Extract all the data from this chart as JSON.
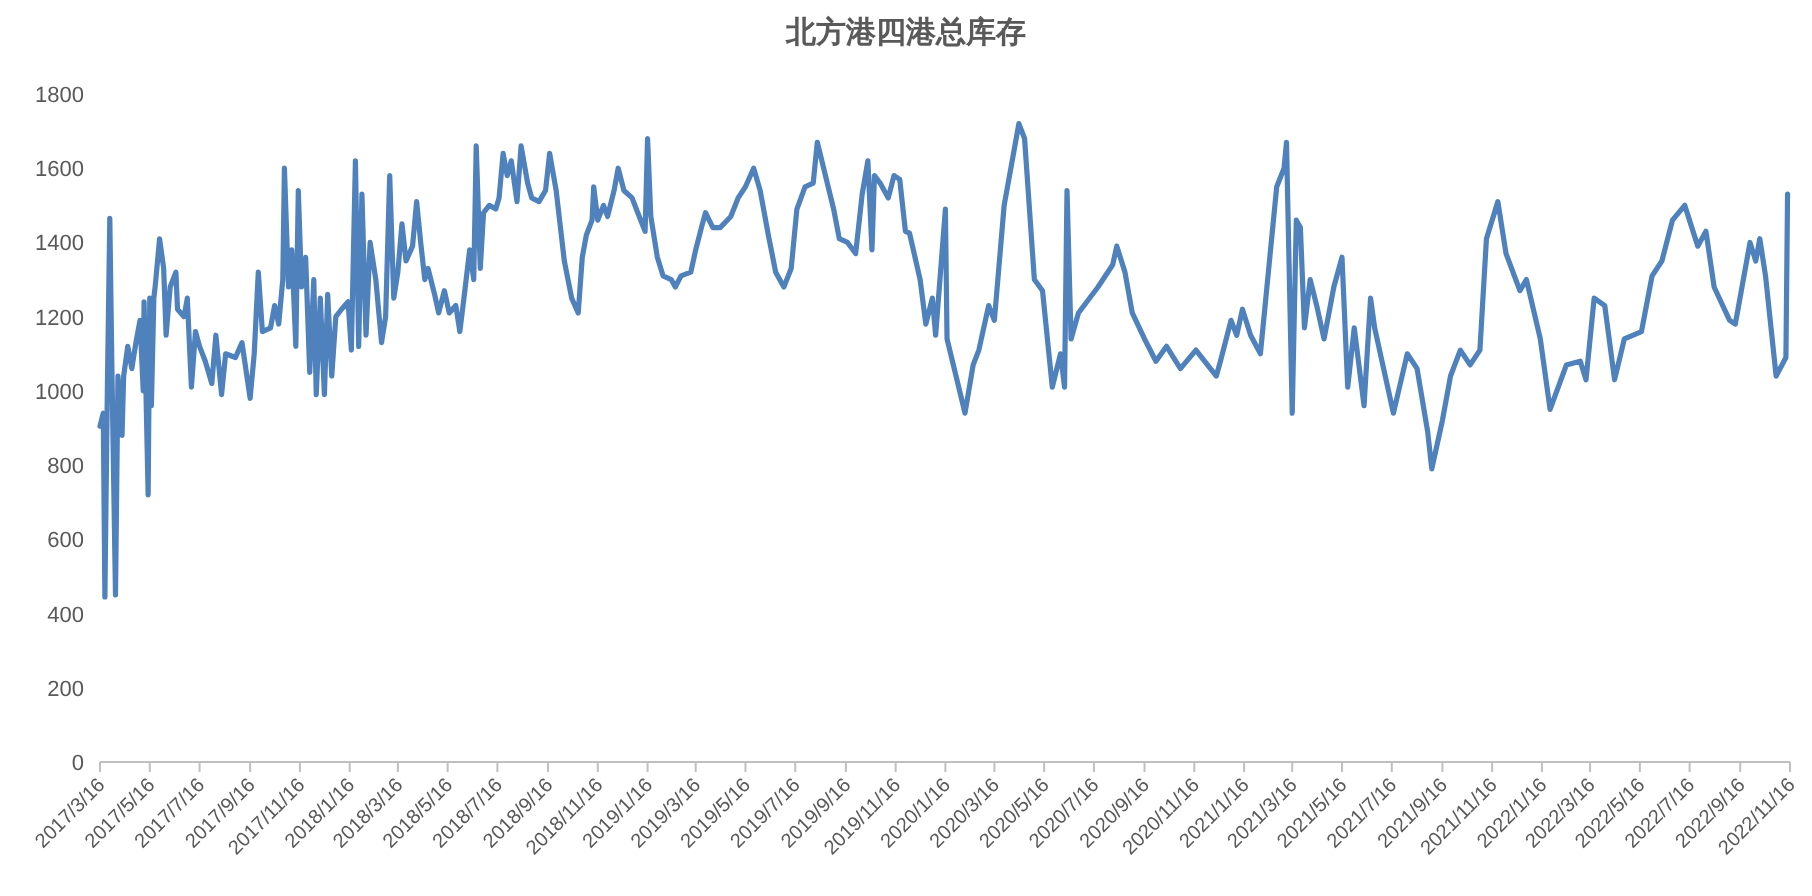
{
  "chart_data": {
    "type": "line",
    "title": "北方港四港总库存",
    "x": [
      "2017-03-16",
      "2017-03-20",
      "2017-03-22",
      "2017-03-25",
      "2017-03-28",
      "2017-03-31",
      "2017-04-04",
      "2017-04-07",
      "2017-04-12",
      "2017-04-14",
      "2017-04-19",
      "2017-04-24",
      "2017-04-29",
      "2017-05-04",
      "2017-05-08",
      "2017-05-09",
      "2017-05-14",
      "2017-05-16",
      "2017-05-18",
      "2017-05-21",
      "2017-05-23",
      "2017-05-28",
      "2017-06-02",
      "2017-06-05",
      "2017-06-10",
      "2017-06-17",
      "2017-06-19",
      "2017-06-27",
      "2017-07-01",
      "2017-07-06",
      "2017-07-11",
      "2017-07-16",
      "2017-07-23",
      "2017-07-31",
      "2017-08-05",
      "2017-08-12",
      "2017-08-17",
      "2017-08-29",
      "2017-09-06",
      "2017-09-16",
      "2017-09-21",
      "2017-09-26",
      "2017-10-01",
      "2017-10-11",
      "2017-10-16",
      "2017-10-21",
      "2017-10-26",
      "2017-10-28",
      "2017-11-02",
      "2017-11-06",
      "2017-11-11",
      "2017-11-14",
      "2017-11-18",
      "2017-11-23",
      "2017-11-28",
      "2017-12-03",
      "2017-12-06",
      "2017-12-11",
      "2017-12-16",
      "2017-12-20",
      "2017-12-25",
      "2017-12-30",
      "2018-01-06",
      "2018-01-14",
      "2018-01-18",
      "2018-01-23",
      "2018-01-27",
      "2018-01-31",
      "2018-02-05",
      "2018-02-10",
      "2018-02-17",
      "2018-02-24",
      "2018-03-01",
      "2018-03-06",
      "2018-03-11",
      "2018-03-16",
      "2018-03-21",
      "2018-03-26",
      "2018-04-03",
      "2018-04-08",
      "2018-04-13",
      "2018-04-18",
      "2018-04-22",
      "2018-04-30",
      "2018-05-05",
      "2018-05-12",
      "2018-05-18",
      "2018-05-26",
      "2018-05-31",
      "2018-06-05",
      "2018-06-12",
      "2018-06-17",
      "2018-06-20",
      "2018-06-25",
      "2018-06-29",
      "2018-07-06",
      "2018-07-14",
      "2018-07-18",
      "2018-07-23",
      "2018-07-28",
      "2018-08-02",
      "2018-08-09",
      "2018-08-14",
      "2018-08-22",
      "2018-08-27",
      "2018-09-05",
      "2018-09-13",
      "2018-09-18",
      "2018-09-26",
      "2018-10-06",
      "2018-10-15",
      "2018-10-23",
      "2018-10-28",
      "2018-11-02",
      "2018-11-09",
      "2018-11-11",
      "2018-11-16",
      "2018-11-23",
      "2018-11-28",
      "2018-12-06",
      "2018-12-11",
      "2018-12-18",
      "2018-12-28",
      "2019-01-04",
      "2019-01-13",
      "2019-01-16",
      "2019-01-20",
      "2019-01-28",
      "2019-02-04",
      "2019-02-14",
      "2019-02-19",
      "2019-02-26",
      "2019-03-10",
      "2019-03-16",
      "2019-03-23",
      "2019-03-28",
      "2019-04-06",
      "2019-04-15",
      "2019-04-28",
      "2019-05-07",
      "2019-05-16",
      "2019-05-26",
      "2019-06-03",
      "2019-06-13",
      "2019-06-22",
      "2019-07-02",
      "2019-07-11",
      "2019-07-18",
      "2019-07-28",
      "2019-08-07",
      "2019-08-12",
      "2019-08-22",
      "2019-09-01",
      "2019-09-08",
      "2019-09-18",
      "2019-09-28",
      "2019-10-06",
      "2019-10-13",
      "2019-10-18",
      "2019-10-21",
      "2019-10-28",
      "2019-11-07",
      "2019-11-14",
      "2019-11-21",
      "2019-11-28",
      "2019-12-03",
      "2019-12-16",
      "2019-12-23",
      "2019-12-31",
      "2020-01-04",
      "2020-01-16",
      "2020-01-18",
      "2020-02-09",
      "2020-02-19",
      "2020-02-26",
      "2020-03-09",
      "2020-03-16",
      "2020-03-28",
      "2020-04-15",
      "2020-04-22",
      "2020-05-04",
      "2020-05-14",
      "2020-05-26",
      "2020-06-05",
      "2020-06-10",
      "2020-06-13",
      "2020-06-18",
      "2020-06-27",
      "2020-07-21",
      "2020-08-08",
      "2020-08-13",
      "2020-08-23",
      "2020-09-01",
      "2020-09-16",
      "2020-09-30",
      "2020-10-13",
      "2020-10-30",
      "2020-11-18",
      "2020-12-13",
      "2020-12-18",
      "2020-12-31",
      "2021-01-07",
      "2021-01-14",
      "2021-01-24",
      "2021-02-05",
      "2021-02-25",
      "2021-03-06",
      "2021-03-09",
      "2021-03-16",
      "2021-03-21",
      "2021-03-26",
      "2021-03-31",
      "2021-04-07",
      "2021-04-15",
      "2021-04-24",
      "2021-05-06",
      "2021-05-16",
      "2021-05-23",
      "2021-05-31",
      "2021-06-12",
      "2021-06-20",
      "2021-06-25",
      "2021-07-06",
      "2021-07-18",
      "2021-08-04",
      "2021-08-16",
      "2021-08-29",
      "2021-09-03",
      "2021-09-16",
      "2021-09-26",
      "2021-10-08",
      "2021-10-20",
      "2021-11-01",
      "2021-11-09",
      "2021-11-23",
      "2021-12-03",
      "2021-12-20",
      "2021-12-28",
      "2022-01-14",
      "2022-01-26",
      "2022-02-15",
      "2022-03-04",
      "2022-03-11",
      "2022-03-21",
      "2022-04-03",
      "2022-04-15",
      "2022-04-27",
      "2022-05-18",
      "2022-05-31",
      "2022-06-12",
      "2022-06-25",
      "2022-07-10",
      "2022-07-26",
      "2022-08-05",
      "2022-08-15",
      "2022-09-03",
      "2022-09-10",
      "2022-09-28",
      "2022-10-05",
      "2022-10-10",
      "2022-10-17",
      "2022-10-30",
      "2022-11-11",
      "2022-11-13"
    ],
    "series": [
      {
        "color": "#4f81bd",
        "values": [
          905,
          940,
          445,
          1000,
          1465,
          1000,
          450,
          1040,
          880,
          1040,
          1120,
          1060,
          1130,
          1190,
          1000,
          1240,
          720,
          1250,
          960,
          1250,
          1290,
          1410,
          1330,
          1150,
          1280,
          1320,
          1220,
          1200,
          1250,
          1010,
          1160,
          1120,
          1080,
          1020,
          1150,
          990,
          1100,
          1090,
          1130,
          980,
          1100,
          1320,
          1160,
          1170,
          1230,
          1180,
          1300,
          1600,
          1280,
          1380,
          1120,
          1540,
          1280,
          1360,
          1050,
          1300,
          990,
          1250,
          990,
          1260,
          1040,
          1200,
          1220,
          1240,
          1110,
          1620,
          1120,
          1530,
          1150,
          1400,
          1300,
          1130,
          1200,
          1580,
          1250,
          1320,
          1450,
          1350,
          1390,
          1510,
          1400,
          1300,
          1330,
          1260,
          1210,
          1270,
          1210,
          1230,
          1160,
          1250,
          1380,
          1300,
          1660,
          1330,
          1480,
          1500,
          1490,
          1520,
          1640,
          1580,
          1620,
          1510,
          1660,
          1560,
          1520,
          1510,
          1540,
          1640,
          1540,
          1350,
          1250,
          1210,
          1360,
          1420,
          1460,
          1550,
          1460,
          1500,
          1470,
          1540,
          1600,
          1540,
          1520,
          1480,
          1430,
          1680,
          1470,
          1360,
          1310,
          1300,
          1280,
          1310,
          1320,
          1380,
          1440,
          1480,
          1440,
          1440,
          1470,
          1520,
          1550,
          1600,
          1540,
          1420,
          1320,
          1280,
          1330,
          1490,
          1550,
          1560,
          1670,
          1580,
          1490,
          1410,
          1400,
          1370,
          1530,
          1620,
          1380,
          1580,
          1560,
          1520,
          1580,
          1570,
          1430,
          1425,
          1300,
          1180,
          1250,
          1150,
          1490,
          1140,
          940,
          1070,
          1110,
          1230,
          1190,
          1500,
          1720,
          1680,
          1300,
          1270,
          1010,
          1100,
          1010,
          1540,
          1140,
          1210,
          1280,
          1340,
          1390,
          1320,
          1210,
          1140,
          1080,
          1120,
          1060,
          1110,
          1040,
          1080,
          1190,
          1150,
          1220,
          1150,
          1100,
          1550,
          1600,
          1670,
          940,
          1460,
          1440,
          1170,
          1300,
          1230,
          1140,
          1280,
          1360,
          1010,
          1170,
          960,
          1250,
          1170,
          1060,
          940,
          1100,
          1060,
          890,
          790,
          920,
          1040,
          1110,
          1070,
          1110,
          1410,
          1510,
          1370,
          1270,
          1300,
          1140,
          950,
          1070,
          1080,
          1030,
          1250,
          1230,
          1030,
          1140,
          1160,
          1310,
          1350,
          1460,
          1500,
          1390,
          1430,
          1280,
          1190,
          1180,
          1400,
          1350,
          1410,
          1310,
          1040,
          1090,
          1530
        ]
      }
    ],
    "xlim": [
      "2017-03-16",
      "2022-11-16"
    ],
    "xticks": [
      {
        "value": "2017-03-16",
        "label": "2017/3/16"
      },
      {
        "value": "2017-05-16",
        "label": "2017/5/16"
      },
      {
        "value": "2017-07-16",
        "label": "2017/7/16"
      },
      {
        "value": "2017-09-16",
        "label": "2017/9/16"
      },
      {
        "value": "2017-11-16",
        "label": "2017/11/16"
      },
      {
        "value": "2018-01-16",
        "label": "2018/1/16"
      },
      {
        "value": "2018-03-16",
        "label": "2018/3/16"
      },
      {
        "value": "2018-05-16",
        "label": "2018/5/16"
      },
      {
        "value": "2018-07-16",
        "label": "2018/7/16"
      },
      {
        "value": "2018-09-16",
        "label": "2018/9/16"
      },
      {
        "value": "2018-11-16",
        "label": "2018/11/16"
      },
      {
        "value": "2019-01-16",
        "label": "2019/1/16"
      },
      {
        "value": "2019-03-16",
        "label": "2019/3/16"
      },
      {
        "value": "2019-05-16",
        "label": "2019/5/16"
      },
      {
        "value": "2019-07-16",
        "label": "2019/7/16"
      },
      {
        "value": "2019-09-16",
        "label": "2019/9/16"
      },
      {
        "value": "2019-11-16",
        "label": "2019/11/16"
      },
      {
        "value": "2020-01-16",
        "label": "2020/1/16"
      },
      {
        "value": "2020-03-16",
        "label": "2020/3/16"
      },
      {
        "value": "2020-05-16",
        "label": "2020/5/16"
      },
      {
        "value": "2020-07-16",
        "label": "2020/7/16"
      },
      {
        "value": "2020-09-16",
        "label": "2020/9/16"
      },
      {
        "value": "2020-11-16",
        "label": "2020/11/16"
      },
      {
        "value": "2021-01-16",
        "label": "2021/1/16"
      },
      {
        "value": "2021-03-16",
        "label": "2021/3/16"
      },
      {
        "value": "2021-05-16",
        "label": "2021/5/16"
      },
      {
        "value": "2021-07-16",
        "label": "2021/7/16"
      },
      {
        "value": "2021-09-16",
        "label": "2021/9/16"
      },
      {
        "value": "2021-11-16",
        "label": "2021/11/16"
      },
      {
        "value": "2022-01-16",
        "label": "2022/1/16"
      },
      {
        "value": "2022-03-16",
        "label": "2022/3/16"
      },
      {
        "value": "2022-05-16",
        "label": "2022/5/16"
      },
      {
        "value": "2022-07-16",
        "label": "2022/7/16"
      },
      {
        "value": "2022-09-16",
        "label": "2022/9/16"
      },
      {
        "value": "2022-11-16",
        "label": "2022/11/16"
      }
    ],
    "ylim": [
      0,
      1800
    ],
    "yticks": [
      0,
      200,
      400,
      600,
      800,
      1000,
      1200,
      1400,
      1600,
      1800
    ]
  }
}
